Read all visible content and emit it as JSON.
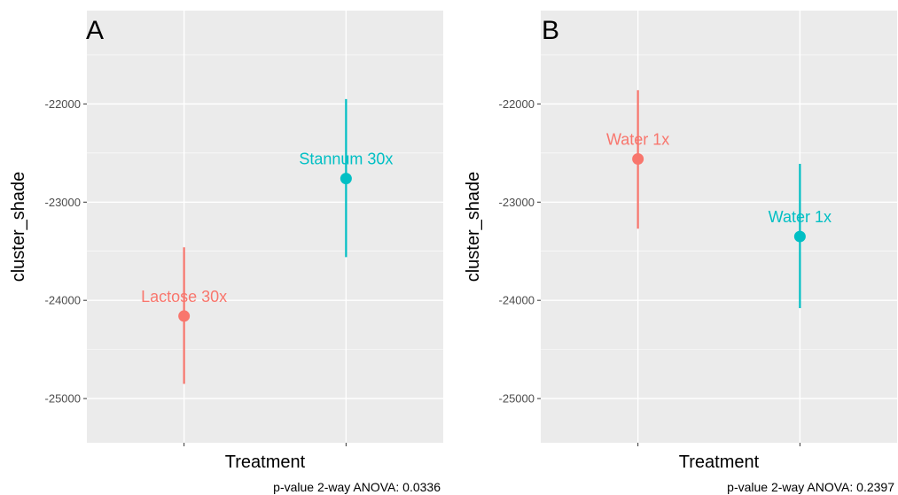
{
  "chart_data": [
    {
      "type": "scatter",
      "panel": "A",
      "xlabel": "Treatment",
      "ylabel": "cluster_shade",
      "ylim": [
        -25450,
        -21050
      ],
      "yticks": [
        -22000,
        -23000,
        -24000,
        -25000
      ],
      "grid": true,
      "legend": "none",
      "caption": "p-value 2-way ANOVA: 0.0336",
      "series": [
        {
          "name": "Lactose 30x",
          "color": "#F8766D",
          "x": 1,
          "y": -24160,
          "ymin": -24850,
          "ymax": -23460
        },
        {
          "name": "Stannum 30x",
          "color": "#00BFC4",
          "x": 2,
          "y": -22760,
          "ymin": -23560,
          "ymax": -21950
        }
      ]
    },
    {
      "type": "scatter",
      "panel": "B",
      "xlabel": "Treatment",
      "ylabel": "cluster_shade",
      "ylim": [
        -25450,
        -21050
      ],
      "yticks": [
        -22000,
        -23000,
        -24000,
        -25000
      ],
      "grid": true,
      "legend": "none",
      "caption": "p-value 2-way ANOVA: 0.2397",
      "series": [
        {
          "name": "Water 1x",
          "color": "#F8766D",
          "x": 1,
          "y": -22560,
          "ymin": -23270,
          "ymax": -21860
        },
        {
          "name": "Water 1x",
          "color": "#00BFC4",
          "x": 2,
          "y": -23350,
          "ymin": -24080,
          "ymax": -22610
        }
      ]
    }
  ]
}
